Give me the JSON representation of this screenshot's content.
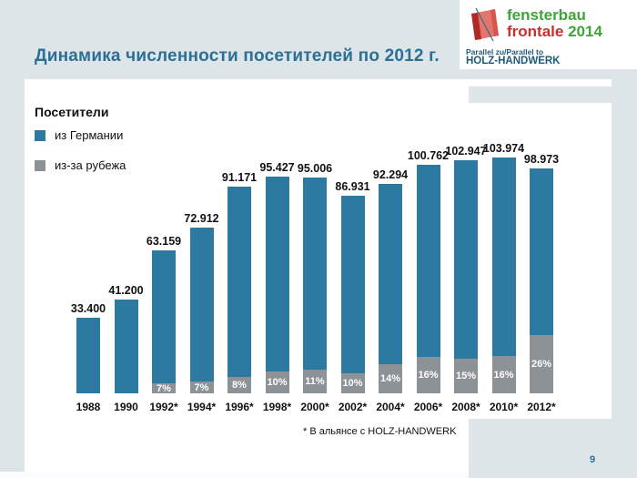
{
  "page": {
    "number": "9"
  },
  "header": {
    "title": "Динамика численности посетителей по 2012 г."
  },
  "logo": {
    "line1": "fensterbau",
    "line2": "frontale",
    "year": "2014",
    "sub1": "Parallel zu/Parallel to",
    "sub2": "HOLZ-HANDWERK"
  },
  "legend": {
    "title": "Посетители",
    "items": [
      {
        "label": "из Германии",
        "color": "#2c7aa1"
      },
      {
        "label": "из-за рубежа",
        "color": "#8d9296"
      }
    ]
  },
  "footnote": "* В альянсе с HOLZ-HANDWERK",
  "colors": {
    "background": "#dde5e9",
    "panel": "#ffffff",
    "title": "#2b6f95",
    "bar_blue": "#2c7aa1",
    "bar_gray": "#8d9296"
  },
  "chart_data": {
    "type": "bar",
    "stacked": true,
    "title": "Динамика численности посетителей по 2012 г.",
    "xlabel": "",
    "ylabel": "Посетители",
    "ymax": 103974,
    "grid": false,
    "legend_position": "top-left",
    "categories": [
      "1988",
      "1990",
      "1992*",
      "1994*",
      "1996*",
      "1998*",
      "2000*",
      "2002*",
      "2004*",
      "2006*",
      "2008*",
      "2010*",
      "2012*"
    ],
    "totals": [
      33400,
      41200,
      63159,
      72912,
      91171,
      95427,
      95006,
      86931,
      92294,
      100762,
      102947,
      103974,
      98973
    ],
    "total_labels": [
      "33.400",
      "41.200",
      "63.159",
      "72.912",
      "91.171",
      "95.427",
      "95.006",
      "86.931",
      "92.294",
      "100.762",
      "102.947",
      "103.974",
      "98.973"
    ],
    "foreign_pct": [
      null,
      null,
      7,
      7,
      8,
      10,
      11,
      10,
      14,
      16,
      15,
      16,
      26
    ],
    "pct_labels": [
      null,
      null,
      "7%",
      "7%",
      "8%",
      "10%",
      "11%",
      "10%",
      "14%",
      "16%",
      "15%",
      "16%",
      "26%"
    ],
    "series": [
      {
        "name": "из Германии",
        "color": "#2c7aa1"
      },
      {
        "name": "из-за рубежа",
        "color": "#8d9296"
      }
    ]
  }
}
